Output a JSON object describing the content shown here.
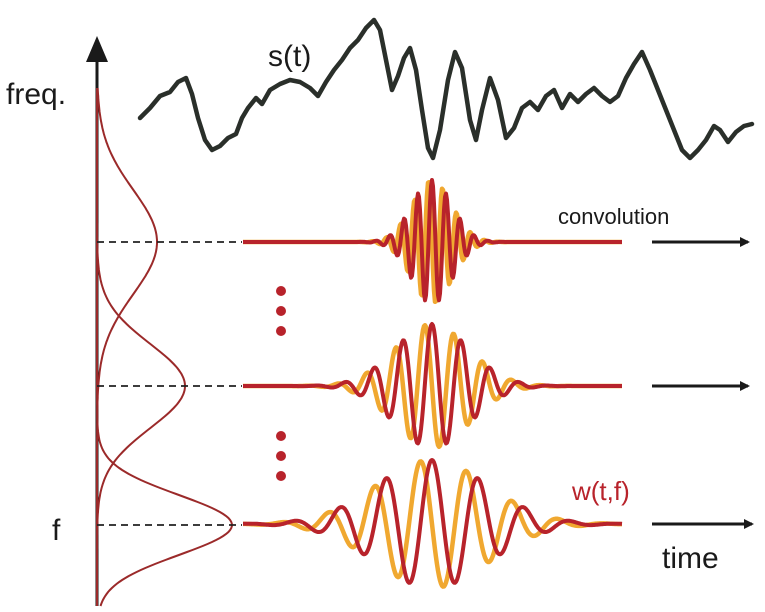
{
  "labels": {
    "freq_axis": "freq.",
    "signal": "s(t)",
    "convolution": "convolution",
    "wavelet": "w(t,f)",
    "f_axis": "f",
    "time_axis": "time"
  },
  "colors": {
    "axis": "#1a1a1a",
    "signal": "#2a2f2a",
    "wavelet_real": "#b8232b",
    "wavelet_imag": "#f0a830",
    "gaussian": "#9b2a2a",
    "dashed": "#222222",
    "dots": "#b8232b"
  }
}
